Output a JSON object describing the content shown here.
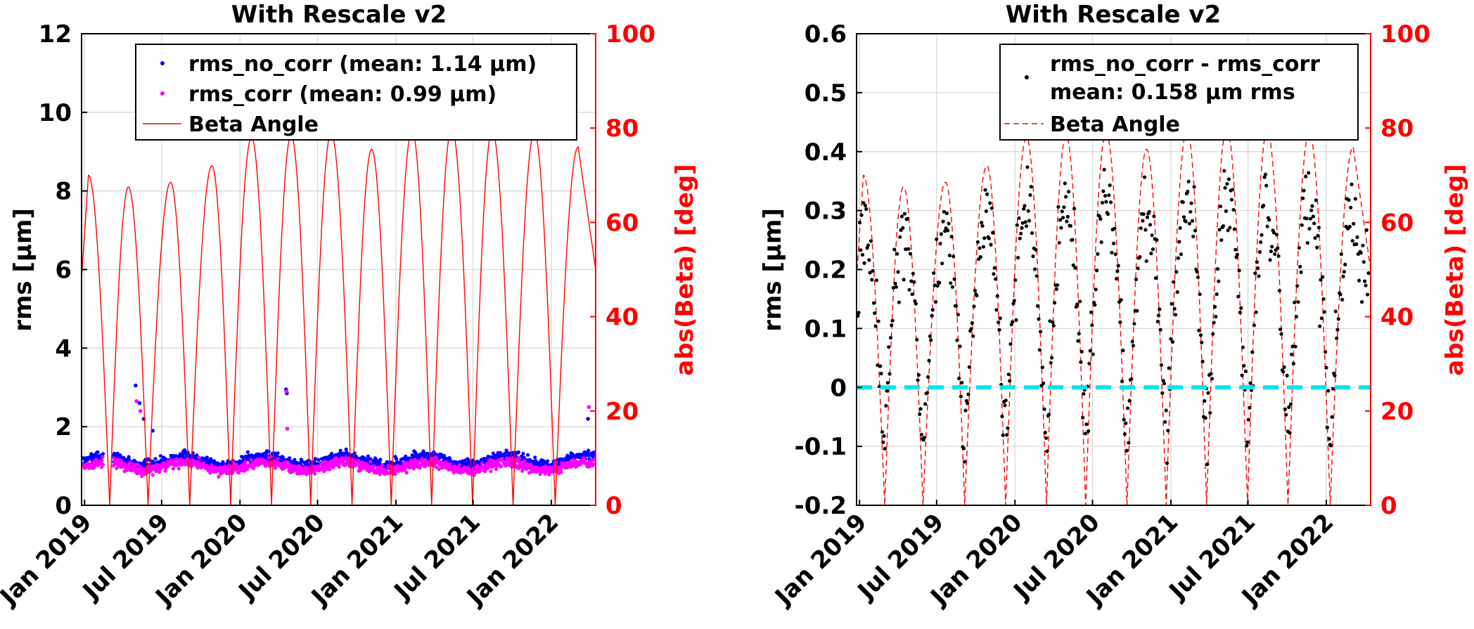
{
  "chart_data": [
    {
      "type": "scatter",
      "title": "With Rescale v2",
      "ylabel": "rms [µm]",
      "ylabel_right": "abs(Beta) [deg]",
      "ylim": [
        0,
        12
      ],
      "ylim_right": [
        0,
        100
      ],
      "yticks": [
        "0",
        "2",
        "4",
        "6",
        "8",
        "10",
        "12"
      ],
      "yticks_right": [
        "0",
        "20",
        "40",
        "60",
        "80",
        "100"
      ],
      "xlim": [
        "2018-12-25",
        "2022-04-15"
      ],
      "xticks": [
        "Jan 2019",
        "Jul 2019",
        "Jan 2020",
        "Jul 2020",
        "Jan 2021",
        "Jul 2021",
        "Jan 2022"
      ],
      "grid": true,
      "legend_position": "top-right",
      "series": [
        {
          "name": "rms_no_corr (mean: 1.14 µm)",
          "kind": "points",
          "color": "#0000ff",
          "mean": 1.14,
          "approx_range": [
            0.7,
            3.1
          ]
        },
        {
          "name": "rms_corr (mean: 0.99 µm)",
          "kind": "points",
          "color": "#ff00ff",
          "mean": 0.99,
          "approx_range": [
            0.5,
            2.9
          ]
        },
        {
          "name": "Beta Angle",
          "kind": "solid-line",
          "color": "#ff0000",
          "axis": "right"
        }
      ]
    },
    {
      "type": "scatter",
      "title": "With Rescale v2",
      "ylabel": "rms [µm]",
      "ylabel_right": "abs(Beta) [deg]",
      "ylim": [
        -0.2,
        0.6
      ],
      "ylim_right": [
        0,
        100
      ],
      "yticks": [
        "-0.2",
        "-0.1",
        "0",
        "0.1",
        "0.2",
        "0.3",
        "0.4",
        "0.5",
        "0.6"
      ],
      "yticks_right": [
        "0",
        "20",
        "40",
        "60",
        "80",
        "100"
      ],
      "xlim": [
        "2018-12-25",
        "2022-04-15"
      ],
      "xticks": [
        "Jan 2019",
        "Jul 2019",
        "Jan 2020",
        "Jul 2020",
        "Jan 2021",
        "Jul 2021",
        "Jan 2022"
      ],
      "grid": true,
      "legend_position": "top-right",
      "reference_line": {
        "y": 0,
        "color": "#00e5ee",
        "style": "dashed"
      },
      "series": [
        {
          "name": "rms_no_corr - rms_corr",
          "name_line2": "mean: 0.158 µm rms",
          "kind": "points",
          "color": "#000000",
          "mean": 0.158,
          "approx_range": [
            -0.17,
            0.42
          ]
        },
        {
          "name": "Beta Angle",
          "kind": "dashed-line",
          "color": "#ff0000",
          "axis": "right"
        }
      ]
    }
  ],
  "beta_angle": {
    "description_units": "deg",
    "peaks": [
      {
        "date": "2019-01-10",
        "value": 70
      },
      {
        "date": "2019-04-14",
        "value": 67.5
      },
      {
        "date": "2019-07-22",
        "value": 68.5
      },
      {
        "date": "2019-10-27",
        "value": 72
      },
      {
        "date": "2020-01-28",
        "value": 78
      },
      {
        "date": "2020-04-30",
        "value": 78.5
      },
      {
        "date": "2020-08-02",
        "value": 79
      },
      {
        "date": "2020-11-05",
        "value": 75.5
      }
    ],
    "zeros": [
      "2019-03-01",
      "2019-05-30",
      "2019-09-05",
      "2019-12-10",
      "2020-03-15",
      "2020-06-15",
      "2020-09-20",
      "2020-12-21",
      "2021-03-26",
      "2021-06-30",
      "2021-10-03",
      "2022-01-10"
    ],
    "start_value": 48,
    "end_value": 50
  }
}
